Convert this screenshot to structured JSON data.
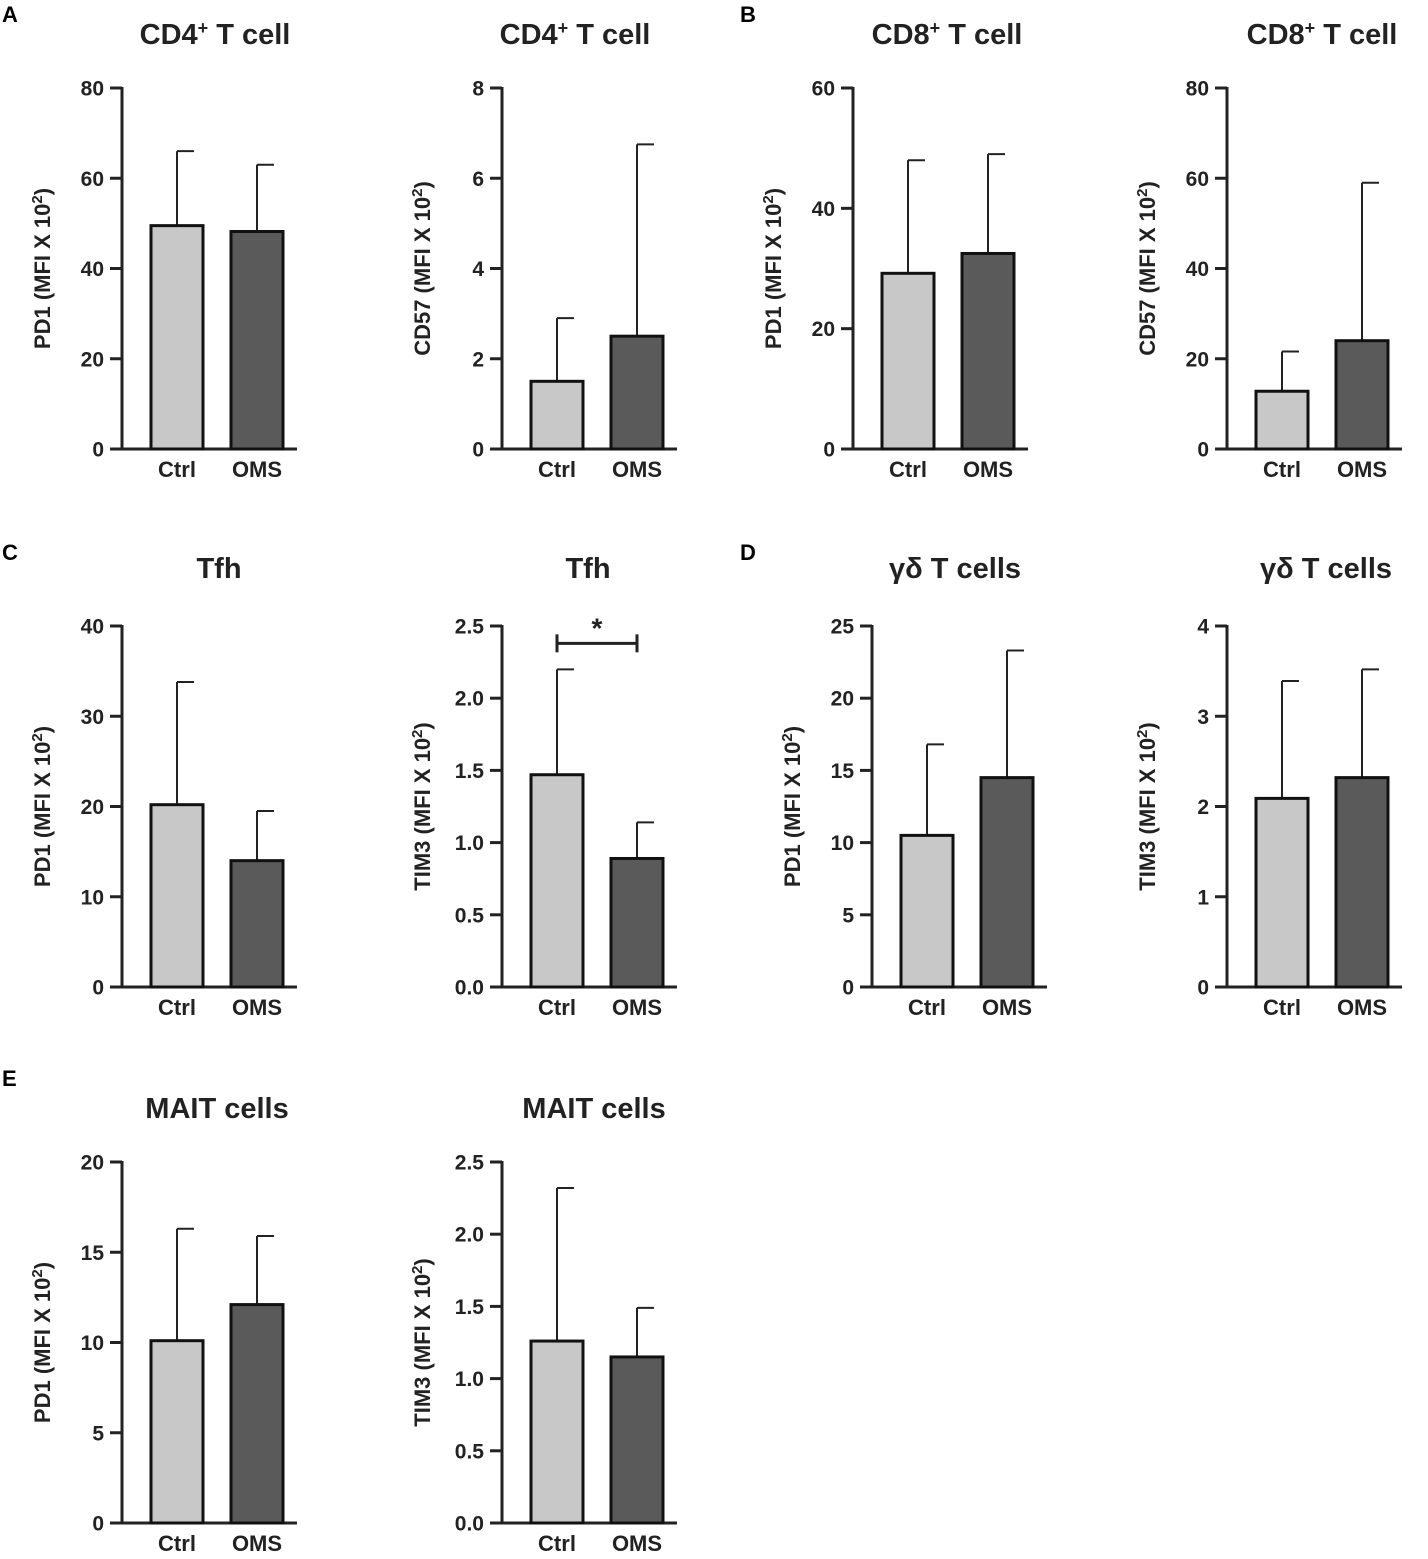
{
  "colors": {
    "ctrl": "#c8c8c8",
    "oms": "#5a5a5a",
    "axis": "#222222"
  },
  "chart_data": [
    {
      "type": "bar",
      "panel": "A",
      "title": {
        "base": "CD4",
        "sup": "+",
        "tail": " T cell"
      },
      "ylabel": {
        "base": "PD1 (MFI X 10",
        "sup": "2",
        "tail": ")"
      },
      "categories": [
        "Ctrl",
        "OMS"
      ],
      "values": [
        49.5,
        48.2
      ],
      "errors": [
        66,
        63
      ],
      "ylim": [
        0,
        80
      ],
      "yticks": [
        "0",
        "20",
        "40",
        "60",
        "80"
      ]
    },
    {
      "type": "bar",
      "panel": "",
      "title": {
        "base": "CD4",
        "sup": "+",
        "tail": " T cell"
      },
      "ylabel": {
        "base": "CD57 (MFI X 10",
        "sup": "2",
        "tail": ")"
      },
      "categories": [
        "Ctrl",
        "OMS"
      ],
      "values": [
        1.5,
        2.5
      ],
      "errors": [
        2.9,
        6.75
      ],
      "ylim": [
        0,
        8
      ],
      "yticks": [
        "0",
        "2",
        "4",
        "6",
        "8"
      ]
    },
    {
      "type": "bar",
      "panel": "B",
      "title": {
        "base": "CD8",
        "sup": "+",
        "tail": " T cell"
      },
      "ylabel": {
        "base": "PD1 (MFI X 10",
        "sup": "2",
        "tail": ")"
      },
      "categories": [
        "Ctrl",
        "OMS"
      ],
      "values": [
        29.2,
        32.5
      ],
      "errors": [
        48,
        49
      ],
      "ylim": [
        0,
        60
      ],
      "yticks": [
        "0",
        "20",
        "40",
        "60"
      ]
    },
    {
      "type": "bar",
      "panel": "",
      "title": {
        "base": "CD8",
        "sup": "+",
        "tail": " T cell"
      },
      "ylabel": {
        "base": "CD57 (MFI X 10",
        "sup": "2",
        "tail": ")"
      },
      "categories": [
        "Ctrl",
        "OMS"
      ],
      "values": [
        12.8,
        24
      ],
      "errors": [
        21.6,
        59
      ],
      "ylim": [
        0,
        80
      ],
      "yticks": [
        "0",
        "20",
        "40",
        "60",
        "80"
      ]
    },
    {
      "type": "bar",
      "panel": "C",
      "title": {
        "base": "Tfh",
        "sup": "",
        "tail": ""
      },
      "ylabel": {
        "base": "PD1 (MFI X 10",
        "sup": "2",
        "tail": ")"
      },
      "categories": [
        "Ctrl",
        "OMS"
      ],
      "values": [
        20.2,
        14
      ],
      "errors": [
        33.8,
        19.5
      ],
      "ylim": [
        0,
        40
      ],
      "yticks": [
        "0",
        "10",
        "20",
        "30",
        "40"
      ]
    },
    {
      "type": "bar",
      "panel": "",
      "title": {
        "base": "Tfh",
        "sup": "",
        "tail": ""
      },
      "ylabel": {
        "base": "TIM3 (MFI X 10",
        "sup": "2",
        "tail": ")"
      },
      "categories": [
        "Ctrl",
        "OMS"
      ],
      "values": [
        1.47,
        0.89
      ],
      "errors": [
        2.2,
        1.14
      ],
      "ylim": [
        0,
        2.5
      ],
      "yticks": [
        "0.0",
        "0.5",
        "1.0",
        "1.5",
        "2.0",
        "2.5"
      ],
      "significance": {
        "label": "*",
        "level": 2.38
      }
    },
    {
      "type": "bar",
      "panel": "D",
      "title": {
        "base": "γδ T cells",
        "sup": "",
        "tail": ""
      },
      "ylabel": {
        "base": "PD1 (MFI X 10",
        "sup": "2",
        "tail": ")"
      },
      "categories": [
        "Ctrl",
        "OMS"
      ],
      "values": [
        10.5,
        14.5
      ],
      "errors": [
        16.8,
        23.3
      ],
      "ylim": [
        0,
        25
      ],
      "yticks": [
        "0",
        "5",
        "10",
        "15",
        "20",
        "25"
      ]
    },
    {
      "type": "bar",
      "panel": "",
      "title": {
        "base": "γδ T cells",
        "sup": "",
        "tail": ""
      },
      "ylabel": {
        "base": "TIM3 (MFI X 10",
        "sup": "2",
        "tail": ")"
      },
      "categories": [
        "Ctrl",
        "OMS"
      ],
      "values": [
        2.09,
        2.32
      ],
      "errors": [
        3.39,
        3.52
      ],
      "ylim": [
        0,
        4
      ],
      "yticks": [
        "0",
        "1",
        "2",
        "3",
        "4"
      ]
    },
    {
      "type": "bar",
      "panel": "E",
      "title": {
        "base": "MAIT cells",
        "sup": "",
        "tail": ""
      },
      "ylabel": {
        "base": "PD1 (MFI X 10",
        "sup": "2",
        "tail": ")"
      },
      "categories": [
        "Ctrl",
        "OMS"
      ],
      "values": [
        10.1,
        12.1
      ],
      "errors": [
        16.3,
        15.9
      ],
      "ylim": [
        0,
        20
      ],
      "yticks": [
        "0",
        "5",
        "10",
        "15",
        "20"
      ]
    },
    {
      "type": "bar",
      "panel": "",
      "title": {
        "base": "MAIT cells",
        "sup": "",
        "tail": ""
      },
      "ylabel": {
        "base": "TIM3 (MFI X 10",
        "sup": "2",
        "tail": ")"
      },
      "categories": [
        "Ctrl",
        "OMS"
      ],
      "values": [
        1.26,
        1.15
      ],
      "errors": [
        2.32,
        1.49
      ],
      "ylim": [
        0,
        2.5
      ],
      "yticks": [
        "0.0",
        "0.5",
        "1.0",
        "1.5",
        "2.0",
        "2.5"
      ]
    }
  ]
}
